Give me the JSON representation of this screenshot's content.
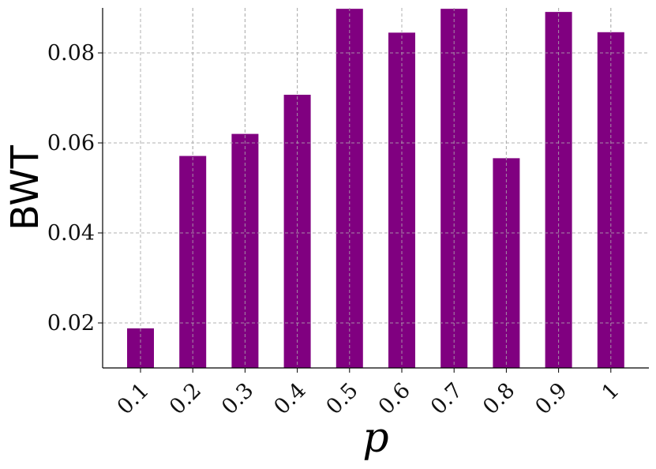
{
  "chart_data": {
    "type": "bar",
    "categories": [
      "0.1",
      "0.2",
      "0.3",
      "0.4",
      "0.5",
      "0.6",
      "0.7",
      "0.8",
      "0.9",
      "1"
    ],
    "values": [
      0.0188,
      0.0571,
      0.062,
      0.0707,
      0.0898,
      0.0845,
      0.0898,
      0.0566,
      0.0891,
      0.0846
    ],
    "ylabel": "BWT",
    "xlabel": "p",
    "ylim": [
      0.01,
      0.09
    ],
    "yticks": [
      0.02,
      0.04,
      0.06,
      0.08
    ],
    "ytick_labels": [
      "0.02",
      "0.04",
      "0.06",
      "0.08"
    ],
    "grid": true,
    "bar_color": "#800080"
  }
}
